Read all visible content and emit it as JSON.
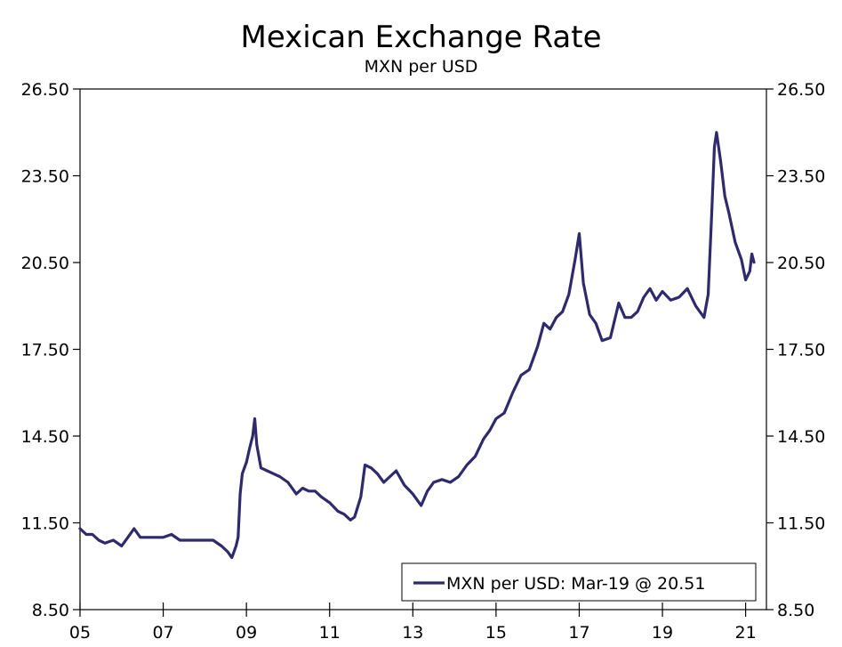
{
  "chart_data": {
    "type": "line",
    "title": "Mexican Exchange Rate",
    "subtitle": "MXN per USD",
    "ylim": [
      8.5,
      26.5
    ],
    "xlim": [
      2005,
      2021.5
    ],
    "y_ticks": [
      "26.50",
      "23.50",
      "20.50",
      "17.50",
      "14.50",
      "11.50",
      "8.50"
    ],
    "y_tick_values": [
      26.5,
      23.5,
      20.5,
      17.5,
      14.5,
      11.5,
      8.5
    ],
    "x_ticks": [
      "05",
      "07",
      "09",
      "11",
      "13",
      "15",
      "17",
      "19",
      "21"
    ],
    "x_tick_values": [
      2005,
      2007,
      2009,
      2011,
      2013,
      2015,
      2017,
      2019,
      2021
    ],
    "grid": false,
    "legend_position": "bottom-right",
    "series_color": "#2e2a6b",
    "series": [
      {
        "name": "MXN per USD: Mar-19 @ 20.51",
        "x": [
          2005.0,
          2005.15,
          2005.3,
          2005.45,
          2005.6,
          2005.8,
          2006.0,
          2006.15,
          2006.3,
          2006.45,
          2006.6,
          2006.75,
          2007.0,
          2007.2,
          2007.4,
          2007.6,
          2007.8,
          2008.0,
          2008.2,
          2008.4,
          2008.55,
          2008.65,
          2008.75,
          2008.8,
          2008.85,
          2008.9,
          2009.0,
          2009.08,
          2009.15,
          2009.2,
          2009.25,
          2009.35,
          2009.5,
          2009.65,
          2009.8,
          2010.0,
          2010.2,
          2010.35,
          2010.5,
          2010.65,
          2010.8,
          2011.0,
          2011.2,
          2011.35,
          2011.5,
          2011.6,
          2011.75,
          2011.85,
          2012.0,
          2012.15,
          2012.3,
          2012.45,
          2012.6,
          2012.8,
          2013.0,
          2013.2,
          2013.35,
          2013.5,
          2013.7,
          2013.9,
          2014.1,
          2014.3,
          2014.5,
          2014.7,
          2014.85,
          2015.0,
          2015.2,
          2015.4,
          2015.6,
          2015.8,
          2016.0,
          2016.15,
          2016.3,
          2016.45,
          2016.6,
          2016.75,
          2016.9,
          2017.0,
          2017.1,
          2017.25,
          2017.4,
          2017.55,
          2017.75,
          2017.95,
          2018.1,
          2018.25,
          2018.4,
          2018.55,
          2018.7,
          2018.85,
          2019.0,
          2019.2,
          2019.4,
          2019.6,
          2019.8,
          2020.0,
          2020.1,
          2020.18,
          2020.25,
          2020.3,
          2020.4,
          2020.5,
          2020.6,
          2020.75,
          2020.9,
          2021.0,
          2021.1,
          2021.15,
          2021.2
        ],
        "values": [
          11.3,
          11.1,
          11.1,
          10.9,
          10.8,
          10.9,
          10.7,
          11.0,
          11.3,
          11.0,
          11.0,
          11.0,
          11.0,
          11.1,
          10.9,
          10.9,
          10.9,
          10.9,
          10.9,
          10.7,
          10.5,
          10.3,
          10.7,
          11.0,
          12.5,
          13.2,
          13.6,
          14.1,
          14.5,
          15.1,
          14.2,
          13.4,
          13.3,
          13.2,
          13.1,
          12.9,
          12.5,
          12.7,
          12.6,
          12.6,
          12.4,
          12.2,
          11.9,
          11.8,
          11.6,
          11.7,
          12.4,
          13.5,
          13.4,
          13.2,
          12.9,
          13.1,
          13.3,
          12.8,
          12.5,
          12.1,
          12.6,
          12.9,
          13.0,
          12.9,
          13.1,
          13.5,
          13.8,
          14.4,
          14.7,
          15.1,
          15.3,
          16.0,
          16.6,
          16.8,
          17.6,
          18.4,
          18.2,
          18.6,
          18.8,
          19.4,
          20.6,
          21.5,
          19.8,
          18.7,
          18.4,
          17.8,
          17.9,
          19.1,
          18.6,
          18.6,
          18.8,
          19.3,
          19.6,
          19.2,
          19.5,
          19.2,
          19.3,
          19.6,
          19.0,
          18.6,
          19.4,
          22.0,
          24.5,
          25.0,
          24.0,
          22.8,
          22.2,
          21.2,
          20.6,
          19.9,
          20.2,
          20.8,
          20.51
        ]
      }
    ]
  }
}
